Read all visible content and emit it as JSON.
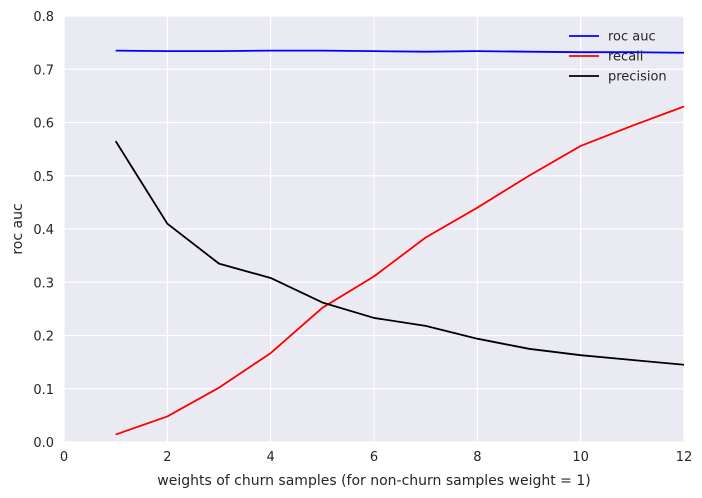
{
  "chart_data": {
    "type": "line",
    "xlabel": "weights of churn samples (for non-churn samples weight = 1)",
    "ylabel": "roc auc",
    "xlim": [
      0,
      12
    ],
    "ylim": [
      0,
      0.8
    ],
    "xticks": [
      0,
      2,
      4,
      6,
      8,
      10,
      12
    ],
    "xtick_labels": [
      "0",
      "2",
      "4",
      "6",
      "8",
      "10",
      "12"
    ],
    "yticks": [
      0.0,
      0.1,
      0.2,
      0.3,
      0.4,
      0.5,
      0.6,
      0.7,
      0.8
    ],
    "ytick_labels": [
      "0.0",
      "0.1",
      "0.2",
      "0.3",
      "0.4",
      "0.5",
      "0.6",
      "0.7",
      "0.8"
    ],
    "grid": true,
    "legend_position": "top-right",
    "x": [
      1,
      2,
      3,
      4,
      5,
      6,
      7,
      8,
      9,
      10,
      11,
      12
    ],
    "series": [
      {
        "name": "roc auc",
        "color": "#0000ff",
        "values": [
          0.735,
          0.734,
          0.734,
          0.735,
          0.735,
          0.734,
          0.733,
          0.734,
          0.733,
          0.732,
          0.732,
          0.731
        ]
      },
      {
        "name": "recall",
        "color": "#ff0000",
        "values": [
          0.014,
          0.048,
          0.102,
          0.167,
          0.252,
          0.311,
          0.384,
          0.44,
          0.5,
          0.556,
          0.594,
          0.63
        ]
      },
      {
        "name": "precision",
        "color": "#000000",
        "values": [
          0.565,
          0.41,
          0.335,
          0.308,
          0.262,
          0.233,
          0.218,
          0.194,
          0.175,
          0.163,
          0.154,
          0.145
        ]
      }
    ]
  }
}
